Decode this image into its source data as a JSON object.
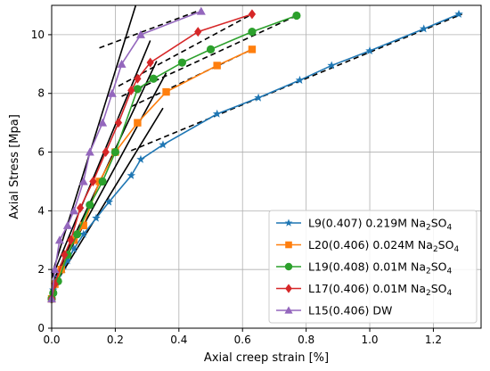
{
  "chart_data": {
    "type": "line",
    "title": "",
    "xlabel": "Axial creep strain [%]",
    "ylabel": "Axial Stress [Mpa]",
    "xlim": [
      0,
      1.35
    ],
    "ylim": [
      0,
      11
    ],
    "xticks": [
      "0.0",
      "0.2",
      "0.4",
      "0.6",
      "0.8",
      "1.0",
      "1.2"
    ],
    "yticks": [
      "0",
      "2",
      "4",
      "6",
      "8",
      "10"
    ],
    "grid": true,
    "legend_placement": "lower-right",
    "series": [
      {
        "name": "L9(0.407) 0.219M Na₂SO₄",
        "legend_main": "L9(0.407) 0.219M Na",
        "legend_sub": "2",
        "legend_tail": "SO",
        "legend_sub2": "4",
        "color": "#1f77b4",
        "marker": "star",
        "x": [
          0.0,
          0.005,
          0.01,
          0.02,
          0.035,
          0.05,
          0.07,
          0.1,
          0.14,
          0.18,
          0.25,
          0.28,
          0.35,
          0.52,
          0.65,
          0.78,
          0.88,
          1.0,
          1.17,
          1.28
        ],
        "y": [
          1.0,
          1.3,
          1.5,
          1.75,
          2.0,
          2.3,
          2.7,
          3.2,
          3.75,
          4.3,
          5.2,
          5.75,
          6.25,
          7.3,
          7.85,
          8.45,
          8.95,
          9.45,
          10.2,
          10.7
        ]
      },
      {
        "name": "L20(0.406) 0.024M Na₂SO₄",
        "legend_main": "L20(0.406) 0.024M Na",
        "legend_sub": "2",
        "legend_tail": "SO",
        "legend_sub2": "4",
        "color": "#ff7f0e",
        "marker": "square",
        "x": [
          0.0,
          0.01,
          0.03,
          0.07,
          0.1,
          0.15,
          0.2,
          0.27,
          0.36,
          0.52,
          0.63
        ],
        "y": [
          1.0,
          1.5,
          2.0,
          3.0,
          3.5,
          5.0,
          6.0,
          7.0,
          8.05,
          8.95,
          9.5
        ]
      },
      {
        "name": "L19(0.408) 0.01M Na₂SO₄",
        "legend_main": "L19(0.408) 0.01M Na",
        "legend_sub": "2",
        "legend_tail": "SO",
        "legend_sub2": "4",
        "color": "#2ca02c",
        "marker": "circle",
        "x": [
          0.0,
          0.005,
          0.02,
          0.05,
          0.08,
          0.12,
          0.16,
          0.2,
          0.27,
          0.32,
          0.41,
          0.5,
          0.63,
          0.77
        ],
        "y": [
          1.0,
          1.2,
          1.6,
          2.5,
          3.2,
          4.2,
          5.0,
          6.0,
          8.15,
          8.5,
          9.05,
          9.5,
          10.1,
          10.65
        ]
      },
      {
        "name": "L17(0.406) 0.01M Na₂SO₄",
        "legend_main": "L17(0.406) 0.01M Na",
        "legend_sub": "2",
        "legend_tail": "SO",
        "legend_sub2": "4",
        "color": "#d62728",
        "marker": "diamond",
        "x": [
          0.0,
          0.01,
          0.04,
          0.06,
          0.09,
          0.13,
          0.17,
          0.21,
          0.25,
          0.27,
          0.31,
          0.46,
          0.63
        ],
        "y": [
          1.0,
          1.5,
          2.5,
          3.0,
          4.1,
          5.0,
          6.0,
          7.0,
          8.1,
          8.5,
          9.05,
          10.1,
          10.7
        ]
      },
      {
        "name": "L15(0.406) DW",
        "legend_main": "L15(0.406) DW",
        "legend_sub": "",
        "legend_tail": "",
        "legend_sub2": "",
        "color": "#9467bd",
        "marker": "triangle",
        "x": [
          0.0,
          0.01,
          0.025,
          0.05,
          0.07,
          0.1,
          0.12,
          0.16,
          0.19,
          0.22,
          0.28,
          0.47
        ],
        "y": [
          1.0,
          2.0,
          3.0,
          3.5,
          4.0,
          5.0,
          6.0,
          7.0,
          8.0,
          9.0,
          10.0,
          10.8
        ]
      }
    ],
    "fit_lines": [
      {
        "style": "solid",
        "color": "#000000",
        "x": [
          0.0,
          0.27
        ],
        "y": [
          1.8,
          11.2
        ]
      },
      {
        "style": "solid",
        "color": "#000000",
        "x": [
          0.0,
          0.31
        ],
        "y": [
          1.7,
          9.8
        ]
      },
      {
        "style": "solid",
        "color": "#000000",
        "x": [
          0.0,
          0.33
        ],
        "y": [
          1.5,
          9.1
        ]
      },
      {
        "style": "solid",
        "color": "#000000",
        "x": [
          0.0,
          0.35
        ],
        "y": [
          1.3,
          7.5
        ]
      },
      {
        "style": "solid",
        "color": "#000000",
        "x": [
          0.0,
          0.36
        ],
        "y": [
          1.5,
          8.7
        ]
      },
      {
        "style": "dashed",
        "color": "#000000",
        "x": [
          0.15,
          0.47
        ],
        "y": [
          9.55,
          10.85
        ]
      },
      {
        "style": "dashed",
        "color": "#000000",
        "x": [
          0.21,
          0.63
        ],
        "y": [
          8.25,
          10.7
        ]
      },
      {
        "style": "dashed",
        "color": "#000000",
        "x": [
          0.22,
          0.78
        ],
        "y": [
          7.9,
          10.7
        ]
      },
      {
        "style": "dashed",
        "color": "#000000",
        "x": [
          0.25,
          0.64
        ],
        "y": [
          7.55,
          9.55
        ]
      },
      {
        "style": "dashed",
        "color": "#000000",
        "x": [
          0.25,
          1.29
        ],
        "y": [
          6.05,
          10.7
        ]
      }
    ]
  }
}
